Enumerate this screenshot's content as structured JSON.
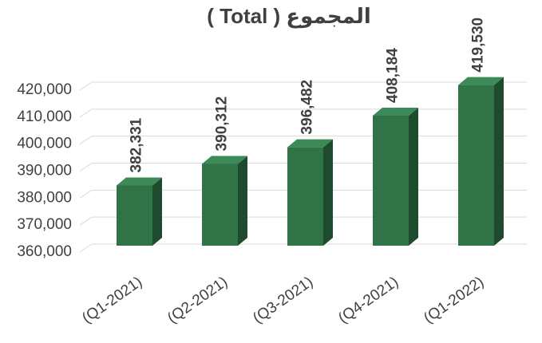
{
  "chart_data": {
    "type": "bar3d",
    "title": "( Total )  المجموع",
    "categories": [
      "(Q1-2021)",
      "(Q2-2021)",
      "(Q3-2021)",
      "(Q4-2021)",
      "(Q1-2022)"
    ],
    "values": [
      382331,
      390312,
      396482,
      408184,
      419530
    ],
    "value_labels": [
      "382,331",
      "390,312",
      "396,482",
      "408,184",
      "419,530"
    ],
    "color": "#2f7347",
    "ylim": [
      360000,
      420000
    ],
    "yticks": [
      {
        "value": 360000,
        "label": "360,000"
      },
      {
        "value": 370000,
        "label": "370,000"
      },
      {
        "value": 380000,
        "label": "380,000"
      },
      {
        "value": 390000,
        "label": "390,000"
      },
      {
        "value": 400000,
        "label": "400,000"
      },
      {
        "value": 410000,
        "label": "410,000"
      },
      {
        "value": 420000,
        "label": "420,000"
      }
    ],
    "grid": true
  }
}
